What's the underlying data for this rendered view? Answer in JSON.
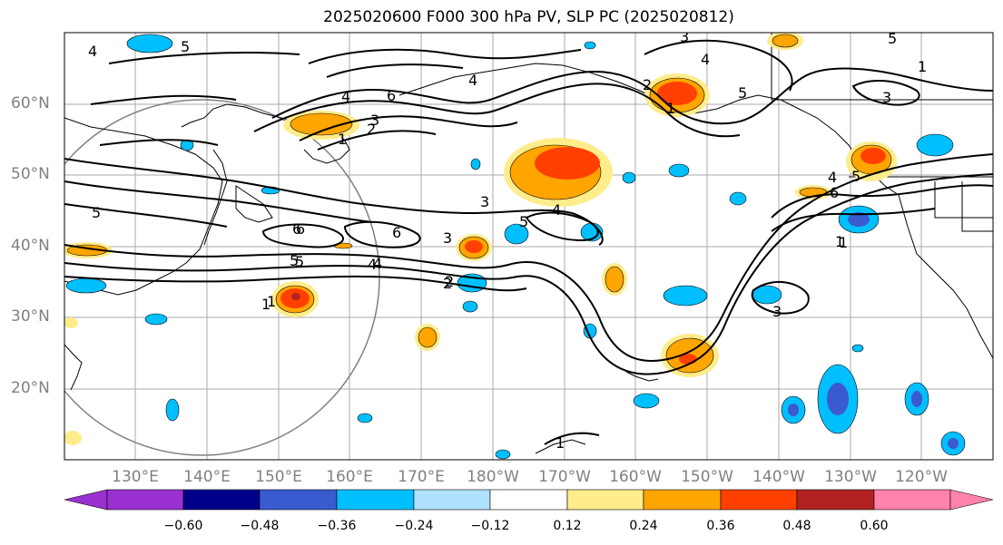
{
  "title": "2025020600 F000 300 hPa PV, SLP PC (2025020812)",
  "lat_labels": [
    "60°N",
    "50°N",
    "40°N",
    "30°N",
    "20°N"
  ],
  "lon_labels": [
    "130°E",
    "140°E",
    "150°E",
    "160°E",
    "170°E",
    "180°W",
    "170°W",
    "160°W",
    "150°W",
    "140°W",
    "130°W",
    "120°W"
  ],
  "colorbar": {
    "ticks": [
      "−0.60",
      "−0.48",
      "−0.36",
      "−0.24",
      "−0.12",
      "0.12",
      "0.24",
      "0.36",
      "0.48",
      "0.60"
    ],
    "colors": [
      "#9b30d0",
      "#00008b",
      "#3a5bd0",
      "#00bfff",
      "#b0e2ff",
      "#ffffff",
      "#ffec8b",
      "#ffa500",
      "#ff4000",
      "#b22222",
      "#ff82ab"
    ]
  },
  "contour_labels": [
    "4",
    "5",
    "5",
    "4",
    "6",
    "3",
    "2",
    "1",
    "3",
    "4",
    "2",
    "5",
    "4",
    "1",
    "4",
    "5",
    "6",
    "1",
    "5",
    "6",
    "5",
    "6",
    "4",
    "3",
    "3",
    "4",
    "5",
    "3",
    "2",
    "1",
    "1",
    "4",
    "5",
    "6",
    "1",
    "3",
    "2",
    "1",
    "5",
    "3",
    "1"
  ]
}
